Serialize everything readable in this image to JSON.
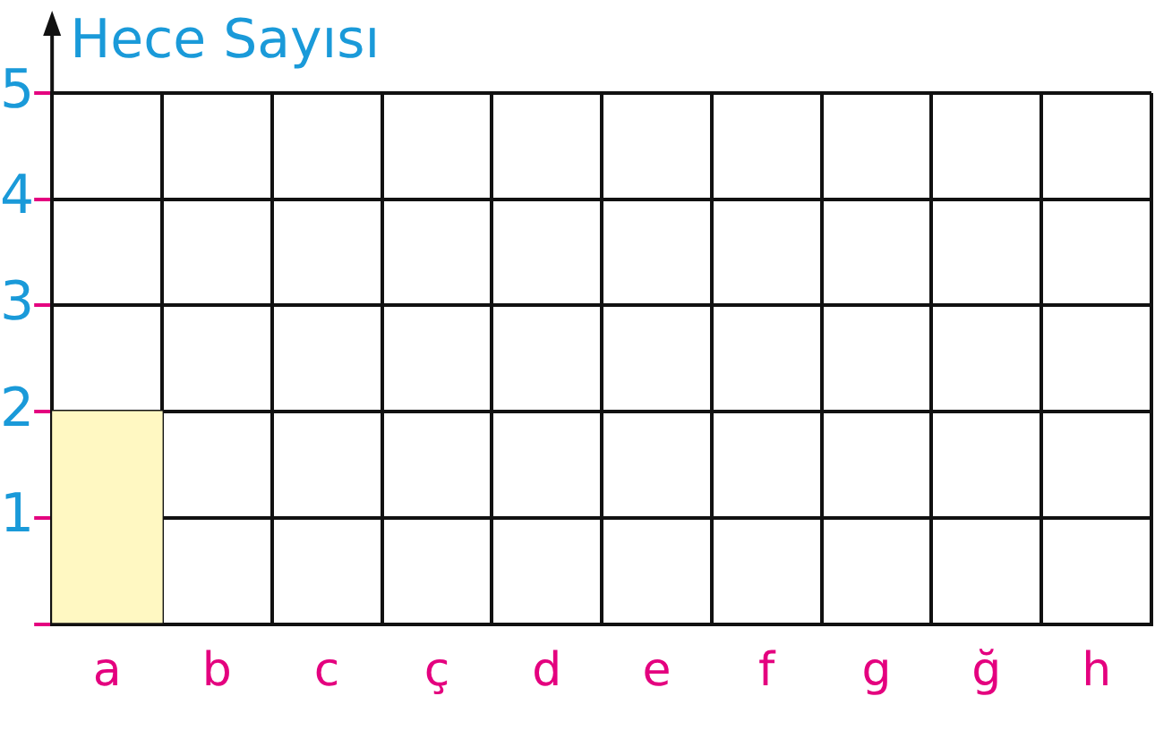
{
  "chart_data": {
    "type": "bar",
    "ylabel": "Hece Sayısı",
    "categories": [
      "a",
      "b",
      "c",
      "ç",
      "d",
      "e",
      "f",
      "g",
      "ğ",
      "h"
    ],
    "values": [
      2,
      null,
      null,
      null,
      null,
      null,
      null,
      null,
      null,
      null
    ],
    "color": "#fff8c2",
    "ylim": [
      0,
      5
    ],
    "yticks": [
      {
        "value": 0,
        "label": null
      },
      1,
      2,
      3,
      4,
      5
    ],
    "grid": true
  }
}
